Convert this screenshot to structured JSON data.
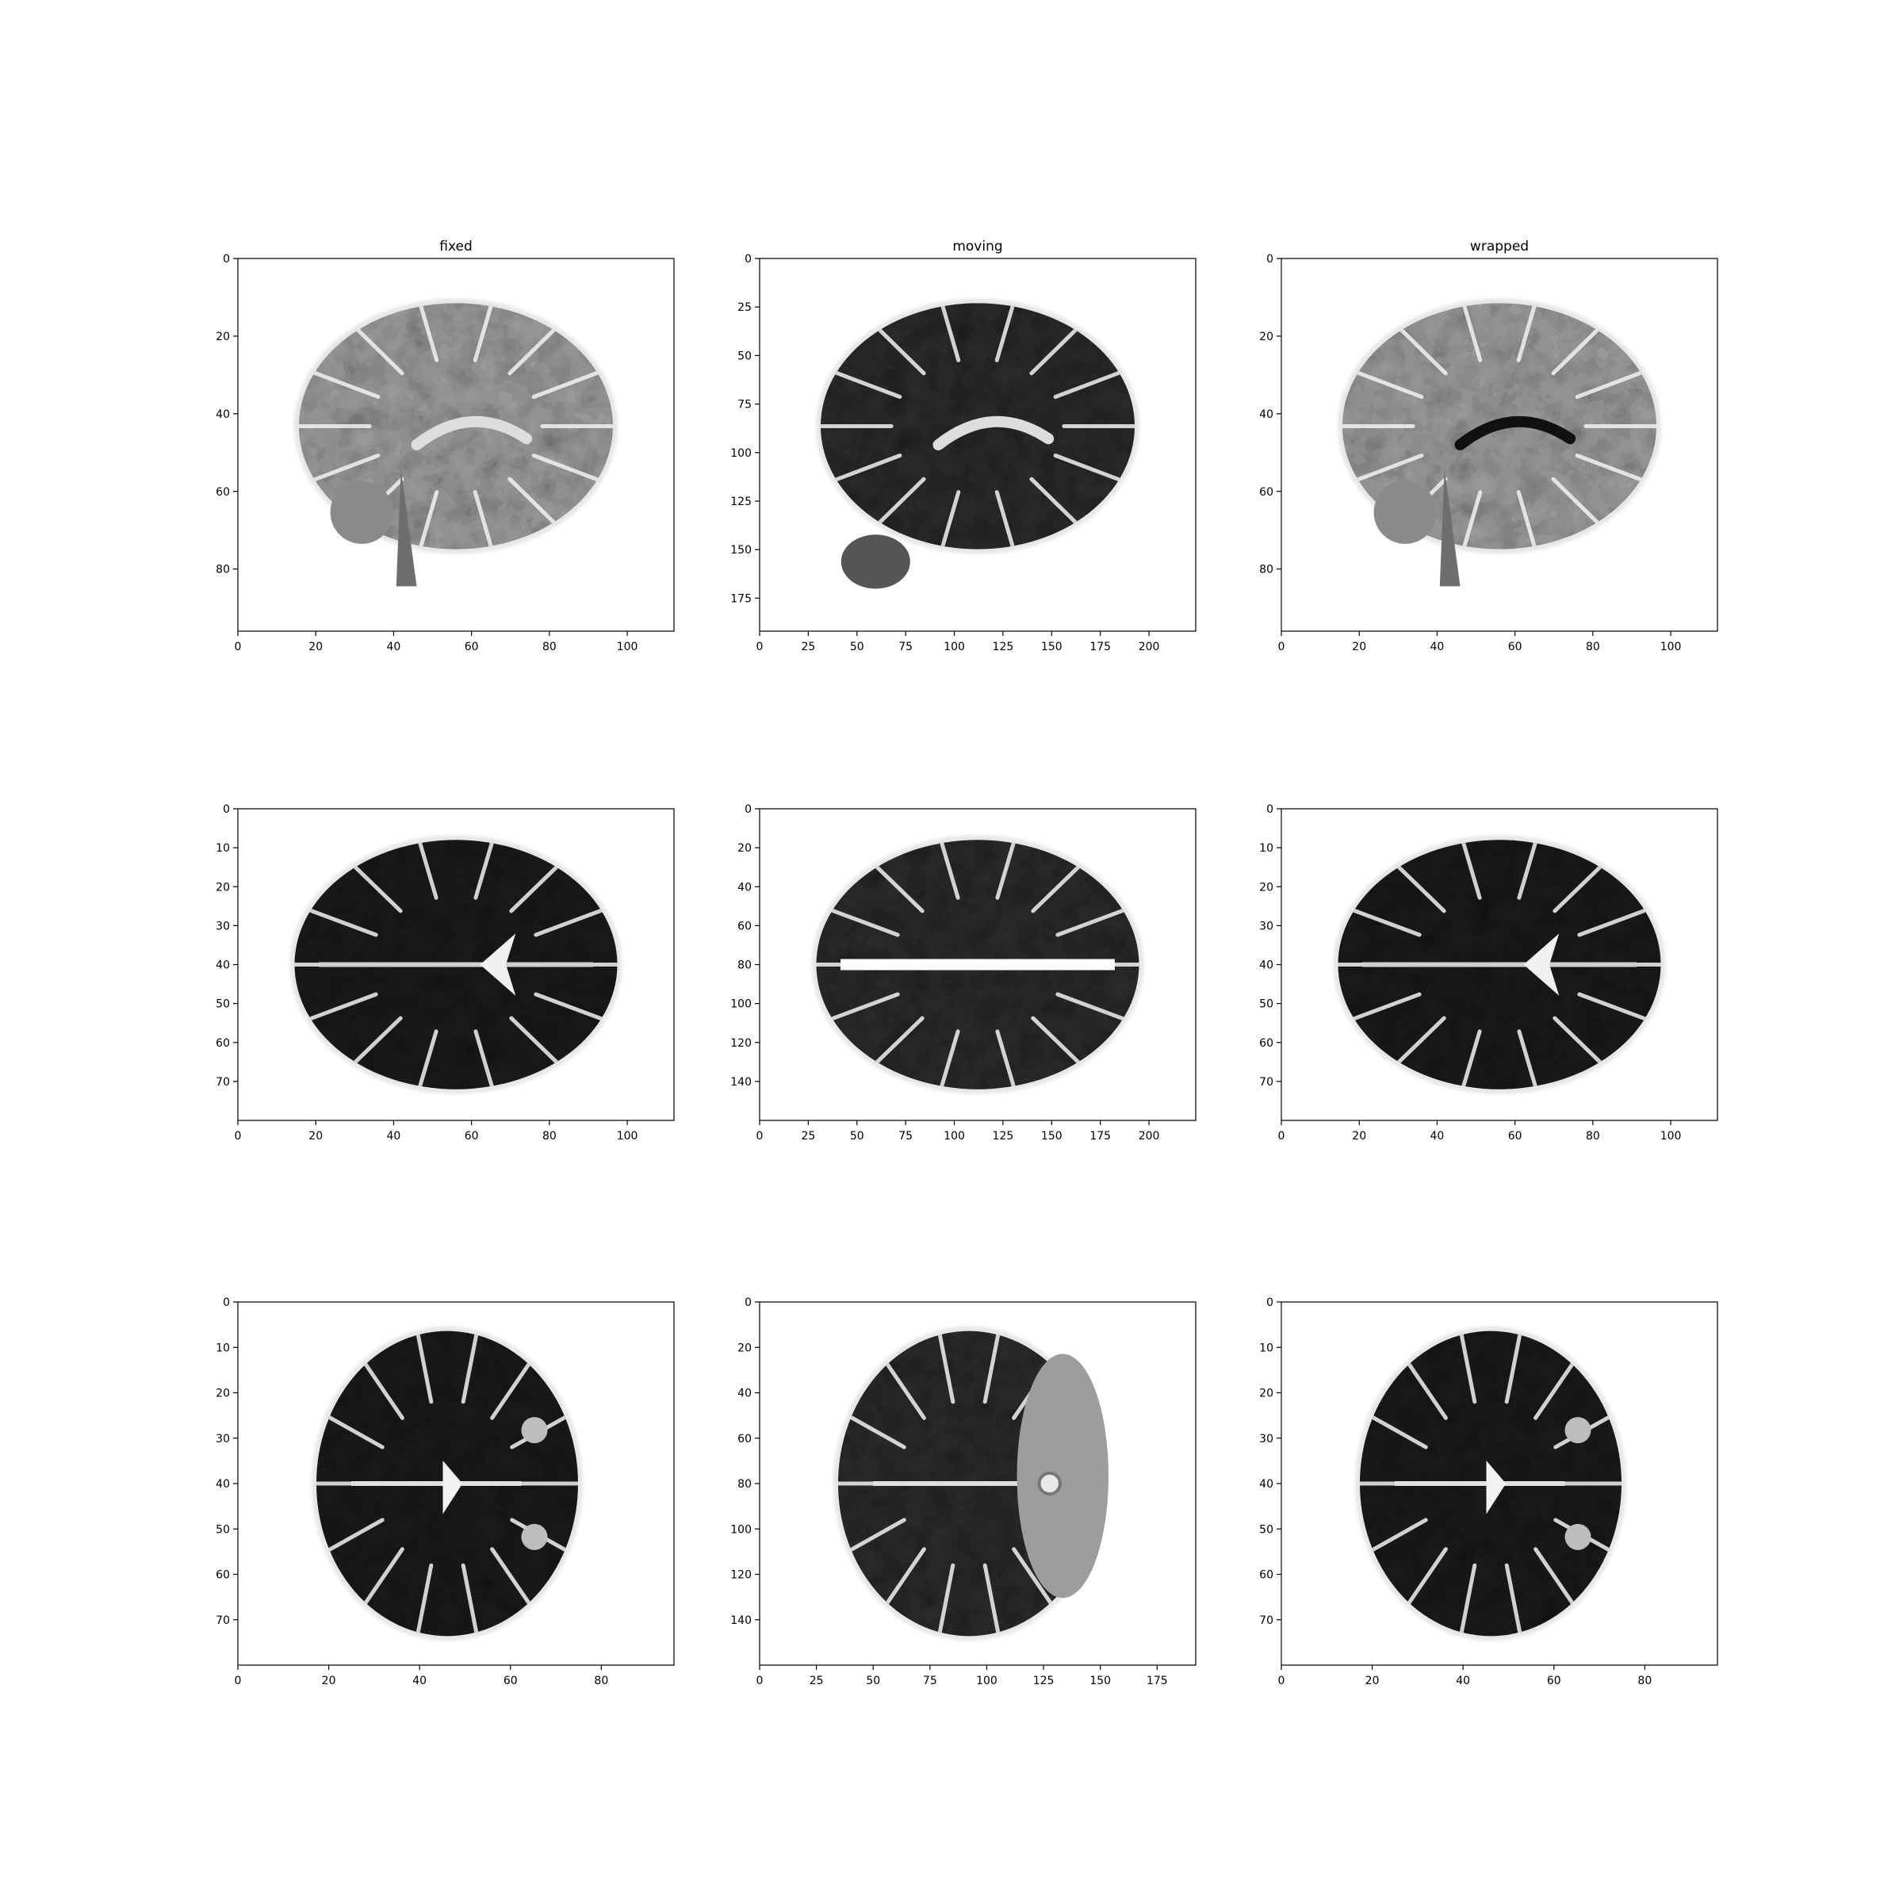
{
  "figure": {
    "columns": [
      {
        "title": "fixed"
      },
      {
        "title": "moving"
      },
      {
        "title": "wrapped"
      }
    ],
    "panels": [
      {
        "id": "r1c1",
        "view": "sagittal",
        "title": "fixed",
        "x_ticks": [
          0,
          20,
          40,
          60,
          80,
          100
        ],
        "y_ticks": [
          0,
          20,
          40,
          60,
          80
        ],
        "xlim": [
          0,
          112
        ],
        "ylim": [
          96,
          0
        ]
      },
      {
        "id": "r1c2",
        "view": "sagittal",
        "title": "moving",
        "x_ticks": [
          0,
          25,
          50,
          75,
          100,
          125,
          150,
          175,
          200
        ],
        "y_ticks": [
          0,
          25,
          50,
          75,
          100,
          125,
          150,
          175
        ],
        "xlim": [
          0,
          224
        ],
        "ylim": [
          192,
          0
        ]
      },
      {
        "id": "r1c3",
        "view": "sagittal",
        "title": "wrapped",
        "x_ticks": [
          0,
          20,
          40,
          60,
          80,
          100
        ],
        "y_ticks": [
          0,
          20,
          40,
          60,
          80
        ],
        "xlim": [
          0,
          112
        ],
        "ylim": [
          96,
          0
        ]
      },
      {
        "id": "r2c1",
        "view": "axial",
        "title": "",
        "x_ticks": [
          0,
          20,
          40,
          60,
          80,
          100
        ],
        "y_ticks": [
          0,
          10,
          20,
          30,
          40,
          50,
          60,
          70
        ],
        "xlim": [
          0,
          112
        ],
        "ylim": [
          80,
          0
        ]
      },
      {
        "id": "r2c2",
        "view": "axial",
        "title": "",
        "x_ticks": [
          0,
          25,
          50,
          75,
          100,
          125,
          150,
          175,
          200
        ],
        "y_ticks": [
          0,
          20,
          40,
          60,
          80,
          100,
          120,
          140
        ],
        "xlim": [
          0,
          224
        ],
        "ylim": [
          160,
          0
        ]
      },
      {
        "id": "r2c3",
        "view": "axial",
        "title": "",
        "x_ticks": [
          0,
          20,
          40,
          60,
          80,
          100
        ],
        "y_ticks": [
          0,
          10,
          20,
          30,
          40,
          50,
          60,
          70
        ],
        "xlim": [
          0,
          112
        ],
        "ylim": [
          80,
          0
        ]
      },
      {
        "id": "r3c1",
        "view": "coronal",
        "title": "",
        "x_ticks": [
          0,
          20,
          40,
          60,
          80
        ],
        "y_ticks": [
          0,
          10,
          20,
          30,
          40,
          50,
          60,
          70
        ],
        "xlim": [
          0,
          96
        ],
        "ylim": [
          80,
          0
        ]
      },
      {
        "id": "r3c2",
        "view": "coronal",
        "title": "",
        "x_ticks": [
          0,
          25,
          50,
          75,
          100,
          125,
          150,
          175
        ],
        "y_ticks": [
          0,
          20,
          40,
          60,
          80,
          100,
          120,
          140
        ],
        "xlim": [
          0,
          192
        ],
        "ylim": [
          160,
          0
        ]
      },
      {
        "id": "r3c3",
        "view": "coronal",
        "title": "",
        "x_ticks": [
          0,
          20,
          40,
          60,
          80
        ],
        "y_ticks": [
          0,
          10,
          20,
          30,
          40,
          50,
          60,
          70
        ],
        "xlim": [
          0,
          96
        ],
        "ylim": [
          80,
          0
        ]
      }
    ]
  }
}
